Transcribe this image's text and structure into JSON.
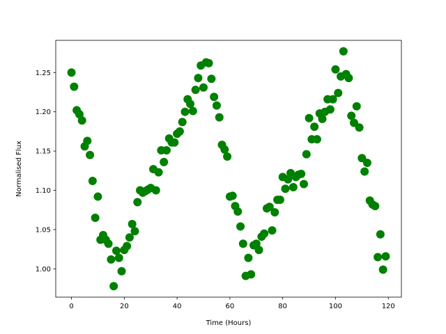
{
  "chart_data": {
    "type": "scatter",
    "title": "",
    "xlabel": "Time (Hours)",
    "ylabel": "Normalised Flux",
    "xlim": [
      -5.95,
      124.95
    ],
    "ylim": [
      0.964,
      1.291
    ],
    "xticks": [
      0,
      20,
      40,
      60,
      80,
      100,
      120
    ],
    "yticks": [
      1.0,
      1.05,
      1.1,
      1.15,
      1.2,
      1.25
    ],
    "grid": false,
    "color": "#008000",
    "x": [
      0,
      1,
      2,
      3,
      4,
      5,
      6,
      7,
      8,
      9,
      10,
      11,
      12,
      13,
      14,
      15,
      16,
      17,
      18,
      19,
      20,
      21,
      22,
      23,
      24,
      25,
      26,
      27,
      28,
      29,
      30,
      31,
      32,
      33,
      34,
      35,
      36,
      37,
      38,
      39,
      40,
      41,
      42,
      43,
      44,
      45,
      46,
      47,
      48,
      49,
      50,
      51,
      52,
      53,
      54,
      55,
      56,
      57,
      58,
      59,
      60,
      61,
      62,
      63,
      64,
      65,
      66,
      67,
      68,
      69,
      70,
      71,
      72,
      73,
      74,
      75,
      76,
      77,
      78,
      79,
      80,
      81,
      82,
      83,
      84,
      85,
      86,
      87,
      88,
      89,
      90,
      91,
      92,
      93,
      94,
      95,
      96,
      97,
      98,
      99,
      100,
      101,
      102,
      103,
      104,
      105,
      106,
      107,
      108,
      109,
      110,
      111,
      112,
      113,
      114,
      115,
      116,
      117,
      118,
      119
    ],
    "y": [
      1.25,
      1.232,
      1.202,
      1.197,
      1.189,
      1.156,
      1.163,
      1.145,
      1.112,
      1.065,
      1.092,
      1.037,
      1.043,
      1.037,
      1.032,
      1.012,
      0.978,
      1.023,
      1.014,
      0.997,
      1.024,
      1.029,
      1.04,
      1.057,
      1.048,
      1.085,
      1.1,
      1.097,
      1.099,
      1.101,
      1.103,
      1.127,
      1.1,
      1.123,
      1.151,
      1.136,
      1.151,
      1.166,
      1.161,
      1.161,
      1.172,
      1.175,
      1.187,
      1.2,
      1.216,
      1.21,
      1.201,
      1.228,
      1.243,
      1.259,
      1.231,
      1.263,
      1.262,
      1.242,
      1.219,
      1.208,
      1.193,
      1.158,
      1.152,
      1.143,
      1.092,
      1.093,
      1.08,
      1.073,
      1.054,
      1.032,
      0.991,
      1.014,
      0.993,
      1.03,
      1.032,
      1.024,
      1.041,
      1.045,
      1.077,
      1.079,
      1.049,
      1.072,
      1.088,
      1.088,
      1.117,
      1.102,
      1.114,
      1.122,
      1.104,
      1.117,
      1.12,
      1.121,
      1.108,
      1.146,
      1.192,
      1.165,
      1.181,
      1.165,
      1.198,
      1.191,
      1.2,
      1.216,
      1.203,
      1.216,
      1.254,
      1.224,
      1.245,
      1.277,
      1.248,
      1.243,
      1.195,
      1.186,
      1.207,
      1.18,
      1.141,
      1.124,
      1.135,
      1.087,
      1.082,
      1.08,
      1.015,
      1.044,
      0.999,
      1.016
    ]
  }
}
